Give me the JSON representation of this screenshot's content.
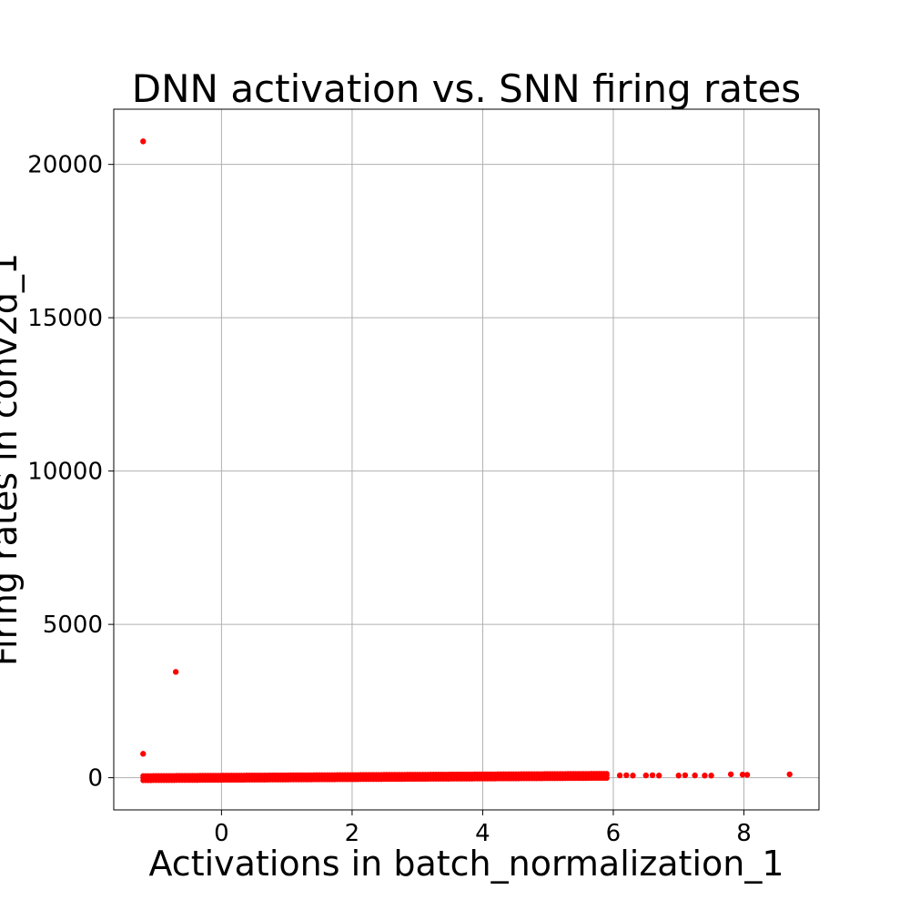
{
  "chart_data": {
    "type": "scatter",
    "title": "DNN activation vs. SNN firing rates",
    "xlabel": "Activations in batch_normalization_1",
    "ylabel": "Firing rates in conv2d_1",
    "xlim": [
      -1.65,
      9.15
    ],
    "ylim": [
      -1050,
      21800
    ],
    "x_ticks": [
      0,
      2,
      4,
      6,
      8
    ],
    "y_ticks": [
      0,
      5000,
      10000,
      15000,
      20000
    ],
    "grid": true,
    "marker_color": "#ff0000",
    "points": [
      {
        "x": -1.2,
        "y": 20750
      },
      {
        "x": -0.7,
        "y": 3450
      },
      {
        "x": -1.2,
        "y": 780
      },
      {
        "x": 7.8,
        "y": 110
      },
      {
        "x": 7.98,
        "y": 100
      },
      {
        "x": 8.05,
        "y": 95
      },
      {
        "x": 8.7,
        "y": 110
      },
      {
        "x": 7.0,
        "y": 70
      },
      {
        "x": 7.1,
        "y": 80
      },
      {
        "x": 7.25,
        "y": 75
      },
      {
        "x": 7.4,
        "y": 70
      },
      {
        "x": 7.5,
        "y": 70
      },
      {
        "x": 6.5,
        "y": 75
      },
      {
        "x": 6.6,
        "y": 80
      },
      {
        "x": 6.7,
        "y": 70
      },
      {
        "x": 6.1,
        "y": 75
      },
      {
        "x": 6.2,
        "y": 80
      },
      {
        "x": 6.3,
        "y": 70
      }
    ],
    "dense_band": {
      "x_start": -1.2,
      "x_end": 5.9,
      "y_start": 0,
      "y_end": 75
    }
  }
}
